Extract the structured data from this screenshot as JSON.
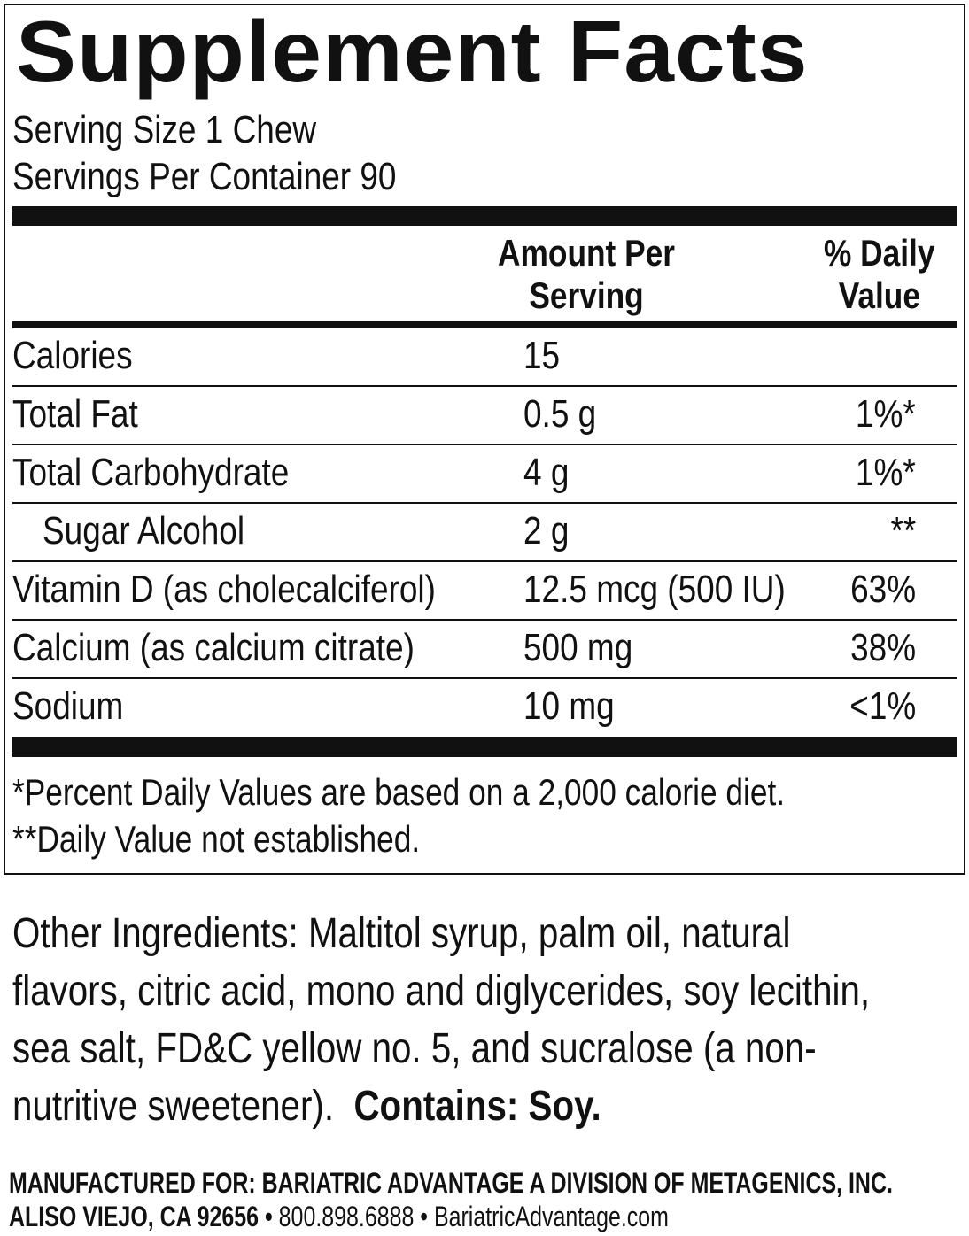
{
  "title": "Supplement Facts",
  "serving_size": "Serving Size 1 Chew",
  "servings_per_container": "Servings Per Container 90",
  "header": {
    "amount_line1": "Amount Per",
    "amount_line2": "Serving",
    "dv_line1": "% Daily",
    "dv_line2": "Value"
  },
  "rows": [
    {
      "label": "Calories",
      "amount": "15",
      "dv": ""
    },
    {
      "label": "Total Fat",
      "amount": "0.5 g",
      "dv": "1%*"
    },
    {
      "label": "Total Carbohydrate",
      "amount": "4 g",
      "dv": "1%*"
    },
    {
      "label": "Sugar Alcohol",
      "amount": "2 g",
      "dv": "**"
    },
    {
      "label": "Vitamin D (as cholecalciferol)",
      "amount": "12.5 mcg (500 IU)",
      "dv": "63%"
    },
    {
      "label": "Calcium (as calcium citrate)",
      "amount": "500 mg",
      "dv": "38%"
    },
    {
      "label": "Sodium",
      "amount": "10 mg",
      "dv": "<1%"
    }
  ],
  "footnotes": [
    "*Percent Daily Values are based on a 2,000 calorie diet.",
    "**Daily Value not established."
  ],
  "ingredients": {
    "lines": [
      "Other Ingredients: Maltitol syrup, palm oil, natural",
      "flavors, citric acid, mono and diglycerides, soy lecithin,",
      "sea salt, FD&C yellow no. 5, and sucralose (a non-",
      "nutritive sweetener).  "
    ],
    "contains": "Contains: Soy."
  },
  "manufacturer": {
    "line1": "MANUFACTURED FOR: BARIATRIC ADVANTAGE A DIVISION OF METAGENICS, INC.",
    "address": "ALISO VIEJO, CA 92656 •",
    "contact": " 800.898.6888 • BariatricAdvantage.com"
  }
}
